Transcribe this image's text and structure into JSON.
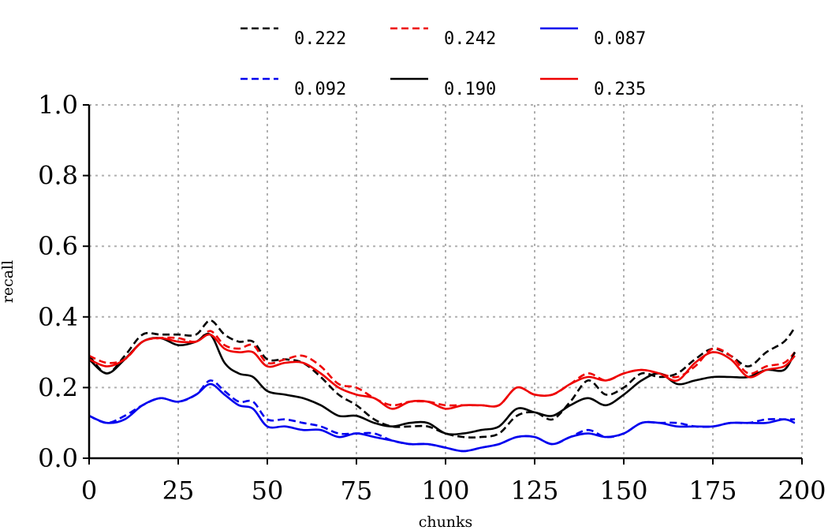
{
  "chart_data": {
    "type": "line",
    "title": "",
    "xlabel": "chunks",
    "ylabel": "recall",
    "xlim": [
      0,
      200
    ],
    "ylim": [
      0.0,
      1.0
    ],
    "xticks": [
      "0",
      "25",
      "50",
      "75",
      "100",
      "125",
      "150",
      "175",
      "200"
    ],
    "yticks": [
      "0.0",
      "0.2",
      "0.4",
      "0.6",
      "0.8",
      "1.0"
    ],
    "grid": true,
    "legend_position": "top",
    "x": [
      0,
      5,
      10,
      15,
      20,
      25,
      30,
      34,
      38,
      42,
      46,
      50,
      55,
      60,
      65,
      70,
      75,
      80,
      85,
      90,
      95,
      100,
      105,
      110,
      115,
      120,
      125,
      130,
      135,
      140,
      145,
      150,
      155,
      160,
      165,
      170,
      175,
      180,
      185,
      190,
      195,
      198
    ],
    "series": [
      {
        "name": "0.222",
        "color": "#000000",
        "style": "dashed",
        "values": [
          0.29,
          0.24,
          0.29,
          0.35,
          0.35,
          0.35,
          0.35,
          0.39,
          0.35,
          0.33,
          0.33,
          0.28,
          0.28,
          0.27,
          0.23,
          0.18,
          0.15,
          0.11,
          0.09,
          0.09,
          0.09,
          0.07,
          0.06,
          0.06,
          0.07,
          0.12,
          0.13,
          0.11,
          0.16,
          0.22,
          0.18,
          0.2,
          0.24,
          0.23,
          0.24,
          0.28,
          0.31,
          0.29,
          0.26,
          0.3,
          0.33,
          0.37
        ]
      },
      {
        "name": "0.242",
        "color": "#ee0000",
        "style": "dashed",
        "values": [
          0.29,
          0.27,
          0.28,
          0.33,
          0.34,
          0.34,
          0.33,
          0.36,
          0.32,
          0.31,
          0.32,
          0.27,
          0.28,
          0.29,
          0.26,
          0.21,
          0.2,
          0.17,
          0.15,
          0.16,
          0.16,
          0.15,
          0.15,
          0.15,
          0.15,
          0.2,
          0.18,
          0.18,
          0.21,
          0.24,
          0.22,
          0.24,
          0.25,
          0.24,
          0.23,
          0.26,
          0.31,
          0.29,
          0.24,
          0.26,
          0.27,
          0.3
        ]
      },
      {
        "name": "0.087",
        "color": "#0000ee",
        "style": "solid",
        "values": [
          0.12,
          0.1,
          0.11,
          0.15,
          0.17,
          0.16,
          0.18,
          0.21,
          0.18,
          0.15,
          0.14,
          0.09,
          0.09,
          0.08,
          0.08,
          0.06,
          0.07,
          0.06,
          0.05,
          0.04,
          0.04,
          0.03,
          0.02,
          0.03,
          0.04,
          0.06,
          0.06,
          0.04,
          0.06,
          0.07,
          0.06,
          0.07,
          0.1,
          0.1,
          0.09,
          0.09,
          0.09,
          0.1,
          0.1,
          0.1,
          0.11,
          0.1
        ]
      },
      {
        "name": "0.092",
        "color": "#0000ee",
        "style": "dashed",
        "values": [
          0.12,
          0.1,
          0.12,
          0.15,
          0.17,
          0.16,
          0.18,
          0.22,
          0.19,
          0.16,
          0.16,
          0.11,
          0.11,
          0.1,
          0.09,
          0.07,
          0.07,
          0.07,
          0.05,
          0.04,
          0.04,
          0.03,
          0.02,
          0.03,
          0.04,
          0.06,
          0.06,
          0.04,
          0.06,
          0.08,
          0.06,
          0.07,
          0.1,
          0.1,
          0.1,
          0.09,
          0.09,
          0.1,
          0.1,
          0.11,
          0.11,
          0.11
        ]
      },
      {
        "name": "0.190",
        "color": "#000000",
        "style": "solid",
        "values": [
          0.28,
          0.24,
          0.28,
          0.33,
          0.34,
          0.32,
          0.33,
          0.35,
          0.27,
          0.24,
          0.23,
          0.19,
          0.18,
          0.17,
          0.15,
          0.12,
          0.12,
          0.1,
          0.09,
          0.1,
          0.1,
          0.07,
          0.07,
          0.08,
          0.09,
          0.14,
          0.13,
          0.12,
          0.15,
          0.17,
          0.15,
          0.18,
          0.22,
          0.24,
          0.21,
          0.22,
          0.23,
          0.23,
          0.23,
          0.25,
          0.25,
          0.3
        ]
      },
      {
        "name": "0.235",
        "color": "#ee0000",
        "style": "solid",
        "values": [
          0.28,
          0.26,
          0.28,
          0.33,
          0.34,
          0.33,
          0.33,
          0.35,
          0.31,
          0.3,
          0.3,
          0.26,
          0.27,
          0.27,
          0.24,
          0.2,
          0.18,
          0.17,
          0.14,
          0.16,
          0.16,
          0.14,
          0.15,
          0.15,
          0.15,
          0.2,
          0.18,
          0.18,
          0.21,
          0.23,
          0.22,
          0.24,
          0.25,
          0.24,
          0.22,
          0.27,
          0.3,
          0.28,
          0.23,
          0.25,
          0.26,
          0.29
        ]
      }
    ]
  }
}
